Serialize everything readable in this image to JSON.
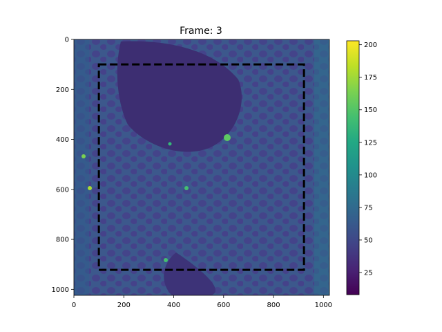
{
  "chart_data": {
    "type": "heatmap",
    "title": "Frame: 3",
    "xlabel": "",
    "ylabel": "",
    "xlim": [
      0,
      1024
    ],
    "ylim": [
      1024,
      0
    ],
    "x_ticks": [
      0,
      200,
      400,
      600,
      800,
      1000
    ],
    "y_ticks": [
      0,
      200,
      400,
      600,
      800,
      1000
    ],
    "colorbar": {
      "colormap": "viridis",
      "range": [
        8,
        203
      ],
      "ticks": [
        25,
        50,
        75,
        100,
        125,
        150,
        175,
        200
      ]
    },
    "roi_box": {
      "style": "dashed",
      "color": "#000000",
      "x": [
        100,
        922
      ],
      "y": [
        100,
        922
      ]
    },
    "image_description_values": {
      "background_level": 45,
      "dark_region_level": 25,
      "bright_spots_level": 180
    }
  }
}
